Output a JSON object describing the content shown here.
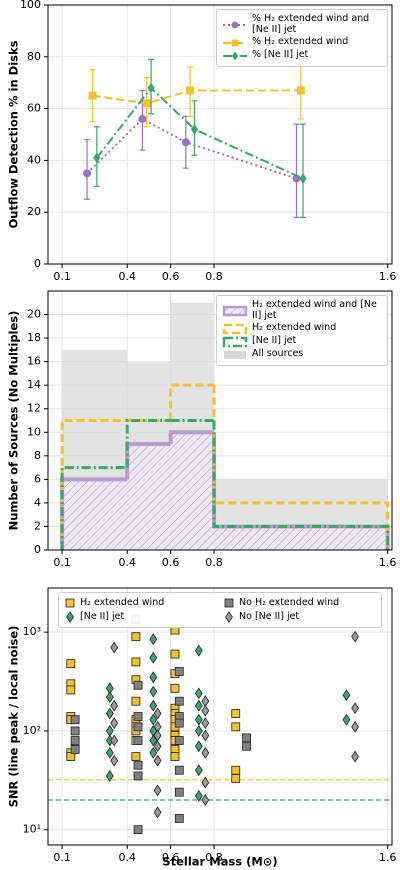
{
  "chart_data": [
    {
      "type": "line",
      "ylabel": "Outflow Detection % in Disks",
      "xlim": [
        0.035,
        1.62
      ],
      "ylim": [
        0,
        100
      ],
      "xticks": [
        0.1,
        0.4,
        0.6,
        0.8,
        1.6
      ],
      "yticks": [
        0,
        20,
        40,
        60,
        80,
        100
      ],
      "grid": true,
      "legend": "upper right",
      "series": [
        {
          "name": "% H₂ extended wind and [Ne II] jet",
          "color": "#a070c0",
          "style": "dotted",
          "marker": "circle",
          "x": [
            0.215,
            0.47,
            0.67,
            1.18
          ],
          "values": [
            35,
            56,
            47,
            33
          ],
          "lower": [
            25,
            44,
            37,
            18
          ],
          "upper": [
            48,
            67,
            57,
            54
          ]
        },
        {
          "name": "% H₂ extended wind",
          "color": "#f2c12e",
          "style": "dashed",
          "marker": "square",
          "x": [
            0.24,
            0.49,
            0.69,
            1.2
          ],
          "values": [
            65,
            62,
            67,
            67
          ],
          "lower": [
            55,
            53,
            57,
            56
          ],
          "upper": [
            75,
            72,
            76,
            77
          ]
        },
        {
          "name": "% [Ne II] jet",
          "color": "#3aa86b",
          "style": "dashdot",
          "marker": "diamond",
          "x": [
            0.26,
            0.51,
            0.71,
            1.21
          ],
          "values": [
            41,
            68,
            52,
            33
          ],
          "lower": [
            30,
            58,
            42,
            18
          ],
          "upper": [
            53,
            79,
            63,
            54
          ]
        }
      ]
    },
    {
      "type": "histogram",
      "ylabel": "Number of Sources (No Multiples)",
      "bins": [
        0.1,
        0.4,
        0.6,
        0.8,
        1.6
      ],
      "xlim": [
        0.035,
        1.62
      ],
      "ylim": [
        0,
        22
      ],
      "xticks": [
        0.1,
        0.4,
        0.6,
        0.8,
        1.6
      ],
      "yticks": [
        0,
        2,
        4,
        6,
        8,
        10,
        12,
        14,
        16,
        18,
        20
      ],
      "grid": true,
      "legend": "upper right",
      "series": [
        {
          "name": "H₂ extended wind and [Ne II] jet",
          "color": "#b89bd0",
          "style": "hatch",
          "values": [
            6,
            9,
            10,
            2
          ]
        },
        {
          "name": "H₂ extended wind",
          "color": "#f2c12e",
          "style": "dashed",
          "values": [
            11,
            11,
            14,
            4
          ]
        },
        {
          "name": "[Ne II] jet",
          "color": "#3aa86b",
          "style": "dashdot",
          "values": [
            7,
            11,
            11,
            2
          ]
        },
        {
          "name": "All sources",
          "color": "#d9d9d9",
          "style": "fill",
          "values": [
            17,
            16,
            21,
            6
          ]
        }
      ]
    },
    {
      "type": "scatter",
      "ylabel": "SNR (line peak / local noise)",
      "xlabel": "Stellar Mass (M⊙)",
      "xlim": [
        0.035,
        1.62
      ],
      "ylim": [
        7,
        2800
      ],
      "ylog": true,
      "xticks": [
        0.1,
        0.4,
        0.6,
        0.8,
        1.6
      ],
      "yticks": [
        {
          "value": 10,
          "label": "10¹"
        },
        {
          "value": 100,
          "label": "10²"
        },
        {
          "value": 1000,
          "label": "10³"
        }
      ],
      "grid": true,
      "legend": "upper center",
      "hlines": [
        {
          "value": 32,
          "color": "#f2c12e"
        },
        {
          "value": 20,
          "color": "#3aa86b"
        }
      ],
      "series": [
        {
          "name": "H₂ extended wind",
          "color": "#f2c12e",
          "marker": "square",
          "x": [
            0.14,
            0.14,
            0.14,
            0.14,
            0.14,
            0.14,
            0.14,
            0.44,
            0.44,
            0.44,
            0.44,
            0.44,
            0.44,
            0.44,
            0.44,
            0.44,
            0.44,
            0.62,
            0.62,
            0.62,
            0.62,
            0.62,
            0.62,
            0.62,
            0.62,
            0.62,
            0.62,
            0.62,
            0.62,
            0.9,
            0.9,
            0.9,
            0.9
          ],
          "values": [
            480,
            300,
            260,
            140,
            130,
            60,
            55,
            1350,
            900,
            500,
            330,
            200,
            130,
            110,
            100,
            80,
            55,
            1050,
            600,
            380,
            270,
            170,
            150,
            130,
            110,
            90,
            80,
            65,
            55,
            150,
            110,
            40,
            33
          ]
        },
        {
          "name": "No H₂ extended wind",
          "color": "#808080",
          "marker": "square",
          "x": [
            0.16,
            0.16,
            0.16,
            0.16,
            0.45,
            0.45,
            0.45,
            0.45,
            0.45,
            0.45,
            0.45,
            0.64,
            0.64,
            0.64,
            0.64,
            0.64,
            0.64,
            0.64,
            0.64,
            0.95,
            0.95
          ],
          "values": [
            130,
            100,
            80,
            65,
            290,
            140,
            110,
            80,
            45,
            35,
            10,
            400,
            200,
            140,
            120,
            80,
            40,
            24,
            13,
            85,
            70
          ]
        },
        {
          "name": "[Ne II] jet",
          "color": "#3aa86b",
          "marker": "diamond",
          "x": [
            0.32,
            0.32,
            0.32,
            0.32,
            0.32,
            0.32,
            0.32,
            0.52,
            0.52,
            0.52,
            0.52,
            0.52,
            0.52,
            0.52,
            0.52,
            0.52,
            0.73,
            0.73,
            0.73,
            0.73,
            0.73,
            0.73,
            0.73,
            0.73,
            1.41,
            1.41
          ],
          "values": [
            270,
            220,
            150,
            100,
            80,
            60,
            35,
            850,
            550,
            350,
            250,
            180,
            130,
            100,
            80,
            60,
            650,
            240,
            180,
            130,
            100,
            70,
            40,
            22,
            230,
            130
          ]
        },
        {
          "name": "No [Ne II] jet",
          "color": "#9a9a9a",
          "marker": "diamond",
          "x": [
            0.34,
            0.34,
            0.34,
            0.34,
            0.34,
            0.54,
            0.54,
            0.54,
            0.54,
            0.54,
            0.54,
            0.54,
            0.76,
            0.76,
            0.76,
            0.76,
            0.76,
            0.76,
            0.76,
            1.45,
            1.45,
            1.45,
            1.45
          ],
          "values": [
            700,
            180,
            120,
            80,
            50,
            150,
            110,
            90,
            70,
            50,
            25,
            15,
            200,
            160,
            120,
            90,
            60,
            30,
            20,
            900,
            170,
            110,
            55
          ]
        }
      ]
    }
  ]
}
